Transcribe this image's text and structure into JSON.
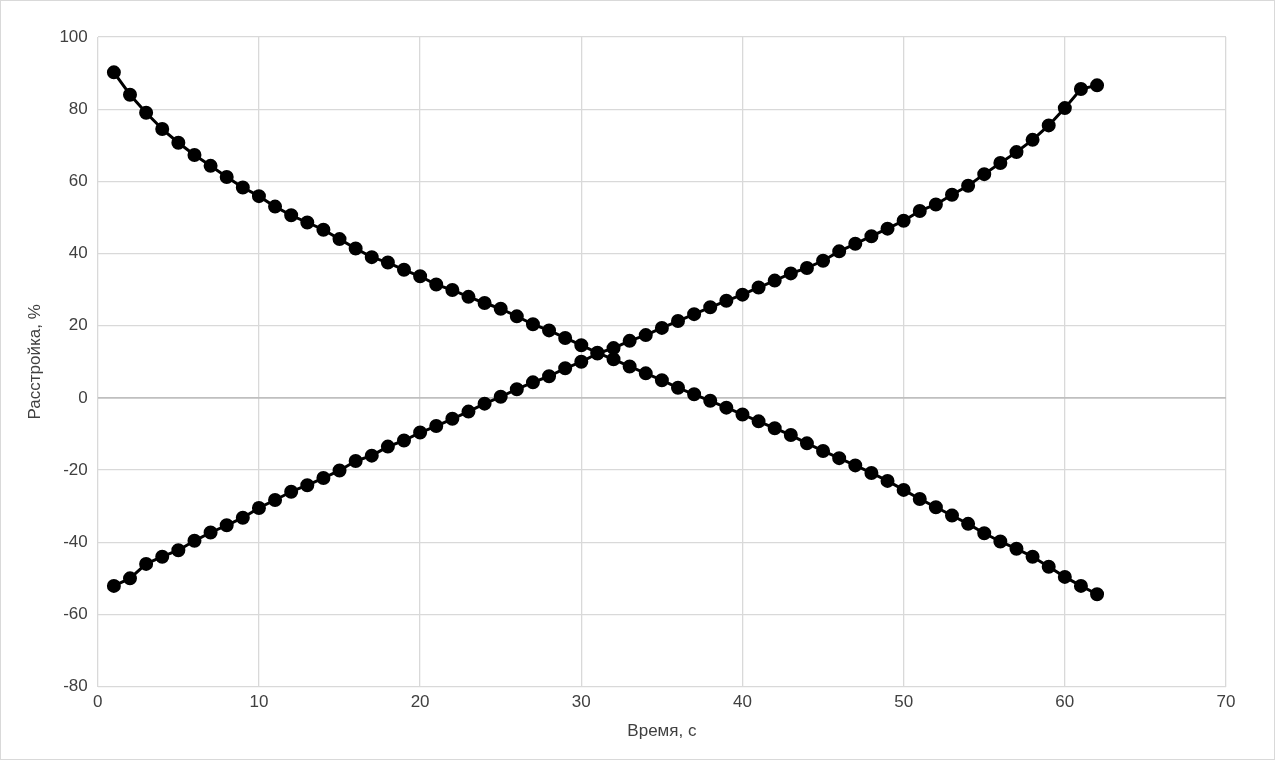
{
  "chart_data": {
    "type": "line",
    "xlabel": "Время, с",
    "ylabel": "Расстройка, %",
    "x": [
      1,
      2,
      3,
      4,
      5,
      6,
      7,
      8,
      9,
      10,
      11,
      12,
      13,
      14,
      15,
      16,
      17,
      18,
      19,
      20,
      21,
      22,
      23,
      24,
      25,
      26,
      27,
      28,
      29,
      30,
      31,
      32,
      33,
      34,
      35,
      36,
      37,
      38,
      39,
      40,
      41,
      42,
      43,
      44,
      45,
      46,
      47,
      48,
      49,
      50,
      51,
      52,
      53,
      54,
      55,
      56,
      57,
      58,
      59,
      60,
      61,
      62
    ],
    "series": [
      {
        "color": "#000000",
        "values": [
          90.2,
          84,
          79,
          74.5,
          70.7,
          67.3,
          64.3,
          61.2,
          58.3,
          55.9,
          53,
          50.6,
          48.6,
          46.6,
          44,
          41.4,
          39,
          37.5,
          35.5,
          33.7,
          31.4,
          29.9,
          28,
          26.3,
          24.7,
          22.6,
          20.4,
          18.7,
          16.6,
          14.6,
          12.5,
          10.7,
          8.7,
          6.8,
          4.9,
          2.8,
          1,
          -0.8,
          -2.7,
          -4.6,
          -6.5,
          -8.4,
          -10.3,
          -12.6,
          -14.7,
          -16.7,
          -18.7,
          -20.8,
          -23,
          -25.5,
          -28,
          -30.3,
          -32.6,
          -34.9,
          -37.5,
          -39.8,
          -41.8,
          -44,
          -46.8,
          -49.6,
          -52.1,
          -54.4
        ]
      },
      {
        "color": "#000000",
        "values": [
          -52.1,
          -50,
          -46,
          -44,
          -42.2,
          -39.6,
          -37.3,
          -35.3,
          -33.2,
          -30.5,
          -28.3,
          -26,
          -24.2,
          -22.2,
          -20.1,
          -17.5,
          -16,
          -13.5,
          -11.8,
          -9.6,
          -7.8,
          -5.8,
          -3.8,
          -1.6,
          0.3,
          2.4,
          4.3,
          6,
          8.2,
          10,
          12.3,
          13.8,
          15.8,
          17.4,
          19.4,
          21.3,
          23.2,
          25.1,
          26.9,
          28.6,
          30.6,
          32.5,
          34.5,
          36,
          38,
          40.6,
          42.7,
          44.8,
          46.9,
          49.1,
          51.8,
          53.6,
          56.3,
          58.8,
          62,
          65.1,
          68.1,
          71.5,
          75.5,
          80.3,
          85.6,
          86.6
        ]
      }
    ],
    "xlim": [
      0,
      70
    ],
    "xticks": [
      0,
      10,
      20,
      30,
      40,
      50,
      60,
      70
    ],
    "ylim": [
      -80,
      100
    ],
    "yticks": [
      -80,
      -60,
      -40,
      -20,
      0,
      20,
      40,
      60,
      80,
      100
    ],
    "grid": true,
    "legend": false,
    "marker": "circle",
    "line_style": "solid"
  }
}
